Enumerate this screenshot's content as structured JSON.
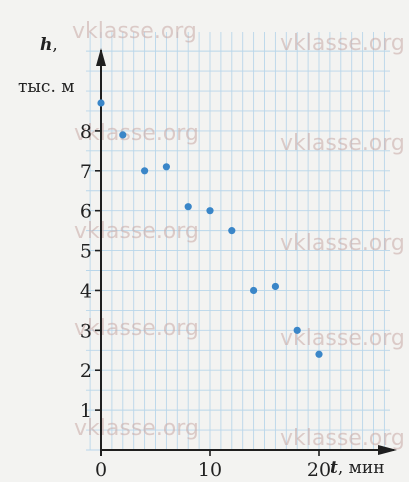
{
  "watermark": "vklasse.org",
  "chart_data": {
    "type": "scatter",
    "title": "",
    "xlabel_var": "t",
    "xlabel_unit": ", мин",
    "ylabel_var": "h",
    "ylabel_var_suffix": ",",
    "ylabel_unit": "тыс. м",
    "xlim": [
      0,
      20
    ],
    "ylim": [
      0,
      9
    ],
    "x_ticks": [
      0,
      10,
      20
    ],
    "y_ticks": [
      1,
      2,
      3,
      4,
      5,
      6,
      7,
      8
    ],
    "grid": true,
    "points": [
      {
        "x": 0,
        "y": 8.7
      },
      {
        "x": 2,
        "y": 7.9
      },
      {
        "x": 4,
        "y": 7.0
      },
      {
        "x": 6,
        "y": 7.1
      },
      {
        "x": 8,
        "y": 6.1
      },
      {
        "x": 10,
        "y": 6.0
      },
      {
        "x": 12,
        "y": 5.5
      },
      {
        "x": 14,
        "y": 4.0
      },
      {
        "x": 16,
        "y": 4.1
      },
      {
        "x": 18,
        "y": 3.0
      },
      {
        "x": 20,
        "y": 2.4
      }
    ],
    "colors": {
      "grid": "#b9d6ea",
      "axis": "#1f1f1f",
      "point": "#3a86c8",
      "background": "#f3f3f1"
    }
  }
}
